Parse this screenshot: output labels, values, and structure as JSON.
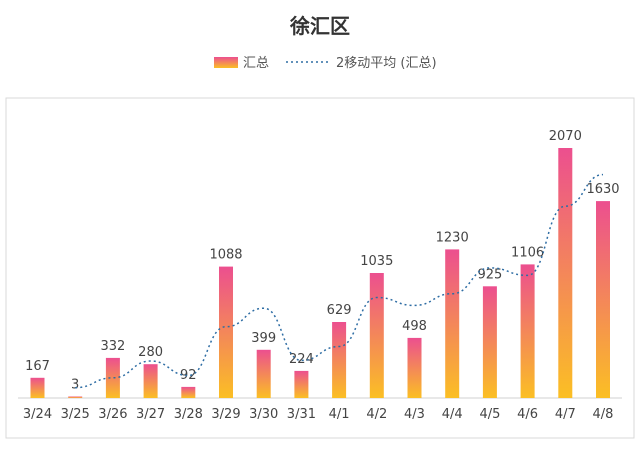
{
  "chart_data": {
    "type": "bar",
    "title": "徐汇区",
    "xlabel": "",
    "ylabel": "",
    "categories": [
      "3/24",
      "3/25",
      "3/26",
      "3/27",
      "3/28",
      "3/29",
      "3/30",
      "3/31",
      "4/1",
      "4/2",
      "4/3",
      "4/4",
      "4/5",
      "4/6",
      "4/7",
      "4/8"
    ],
    "series": [
      {
        "name": "汇总",
        "kind": "bar",
        "values": [
          167,
          3,
          332,
          280,
          92,
          1088,
          399,
          224,
          629,
          1035,
          498,
          1230,
          925,
          1106,
          2070,
          1630
        ],
        "color_top": "#ec4f8f",
        "color_bottom": "#fbbf24"
      },
      {
        "name": "2移动平均 (汇总)",
        "kind": "moving-average",
        "values": [
          null,
          85,
          167.5,
          306,
          186,
          590,
          743.5,
          311.5,
          426.5,
          832,
          766.5,
          864,
          1077.5,
          1015.5,
          1588,
          1850
        ],
        "color": "#2e6da4"
      }
    ],
    "ylim": [
      0,
      2200
    ],
    "grid": false,
    "legend_position": "top-center"
  }
}
